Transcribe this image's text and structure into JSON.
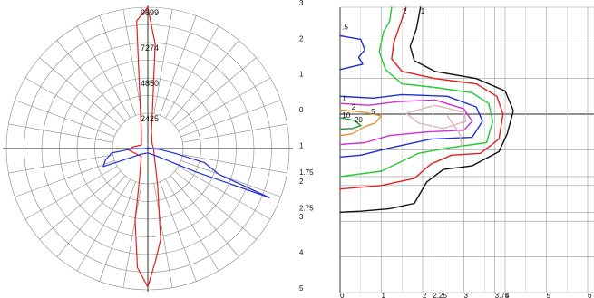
{
  "chart_data": [
    {
      "type": "polar-line",
      "title": "",
      "radial_tick_labels": [
        "2425",
        "4850",
        "7274",
        "9699"
      ],
      "radial_ticks": [
        2425,
        4850,
        7274,
        9699
      ],
      "rmax": 9699,
      "angle_step_deg": 10,
      "colors": {
        "grid": "#888888",
        "axis": "#222222"
      },
      "series": [
        {
          "color": "#e02020",
          "points": [
            {
              "angle": 0,
              "r": 9699
            },
            {
              "angle": 4,
              "r": 7200
            },
            {
              "angle": 7,
              "r": 2600
            },
            {
              "angle": 12,
              "r": 1200
            },
            {
              "angle": 40,
              "r": 450
            },
            {
              "angle": 90,
              "r": 400
            },
            {
              "angle": 140,
              "r": 700
            },
            {
              "angle": 165,
              "r": 2600
            },
            {
              "angle": 172,
              "r": 6300
            },
            {
              "angle": 176,
              "r": 7700
            },
            {
              "angle": 180,
              "r": 9500
            },
            {
              "angle": 185,
              "r": 8200
            },
            {
              "angle": 190,
              "r": 5000
            },
            {
              "angle": 195,
              "r": 2200
            },
            {
              "angle": 220,
              "r": 700
            },
            {
              "angle": 265,
              "r": 1300
            },
            {
              "angle": 275,
              "r": 1100
            },
            {
              "angle": 300,
              "r": 500
            },
            {
              "angle": 340,
              "r": 1300
            },
            {
              "angle": 355,
              "r": 8800
            },
            {
              "angle": 360,
              "r": 9699
            }
          ]
        },
        {
          "color": "#1f2fd0",
          "points": [
            {
              "angle": 0,
              "r": 50
            },
            {
              "angle": 80,
              "r": 150
            },
            {
              "angle": 95,
              "r": 900
            },
            {
              "angle": 100,
              "r": 1900
            },
            {
              "angle": 104,
              "r": 4000
            },
            {
              "angle": 110,
              "r": 5200
            },
            {
              "angle": 112,
              "r": 9000
            },
            {
              "angle": 116,
              "r": 3600
            },
            {
              "angle": 130,
              "r": 800
            },
            {
              "angle": 180,
              "r": 300
            },
            {
              "angle": 230,
              "r": 600
            },
            {
              "angle": 248,
              "r": 3300
            },
            {
              "angle": 255,
              "r": 3000
            },
            {
              "angle": 263,
              "r": 2500
            },
            {
              "angle": 268,
              "r": 1200
            },
            {
              "angle": 275,
              "r": 100
            },
            {
              "angle": 360,
              "r": 50
            }
          ]
        }
      ]
    },
    {
      "type": "contour",
      "title": "",
      "xlim": [
        0,
        6.5
      ],
      "ylim_top": 3,
      "ylim_bottom": 5,
      "y_tick_labels": [
        "3",
        "2",
        "1",
        "0",
        "1",
        "1.75",
        "2",
        "2.75",
        "3",
        "4",
        "5"
      ],
      "y_ticks": [
        3,
        2,
        1,
        0,
        -1,
        -1.75,
        -2,
        -2.75,
        -3,
        -4,
        -5
      ],
      "x_tick_labels": [
        "0",
        "1",
        "2",
        "2.25",
        "3",
        "3.75",
        "4",
        "5",
        "6"
      ],
      "x_ticks": [
        0,
        1,
        2,
        2.25,
        3,
        3.75,
        4,
        5,
        6
      ],
      "contour_labels": [
        {
          "text": "2",
          "x": 1.52,
          "y": 2.9
        },
        {
          "text": "1",
          "x": 1.95,
          "y": 2.9
        },
        {
          "text": ".5",
          "x": 0.05,
          "y": 2.45
        },
        {
          "text": "1",
          "x": 0.05,
          "y": 0.45
        },
        {
          "text": "2",
          "x": 0.28,
          "y": 0.2
        },
        {
          "text": "5",
          "x": 0.75,
          "y": 0.07
        },
        {
          "text": "10",
          "x": 0.05,
          "y": -0.03
        },
        {
          "text": "20",
          "x": 0.35,
          "y": -0.15
        }
      ],
      "colors": {
        "grid": "#999999",
        "axis": "#222222"
      },
      "contours": [
        {
          "color": "#111111",
          "points": [
            [
              1.95,
              3
            ],
            [
              1.85,
              2.4
            ],
            [
              1.7,
              1.9
            ],
            [
              1.8,
              1.5
            ],
            [
              2.3,
              1.2
            ],
            [
              3.3,
              1.0
            ],
            [
              4.0,
              0.65
            ],
            [
              4.2,
              0.1
            ],
            [
              4.05,
              -0.55
            ],
            [
              3.85,
              -1.05
            ],
            [
              3.2,
              -1.45
            ],
            [
              2.5,
              -1.55
            ],
            [
              2.1,
              -1.9
            ],
            [
              1.8,
              -2.5
            ],
            [
              1.2,
              -2.65
            ],
            [
              0.5,
              -2.72
            ],
            [
              0,
              -2.75
            ]
          ]
        },
        {
          "color": "#e02020",
          "points": [
            [
              1.6,
              3
            ],
            [
              1.45,
              2.5
            ],
            [
              1.3,
              2.0
            ],
            [
              1.25,
              1.55
            ],
            [
              1.5,
              1.2
            ],
            [
              2.3,
              1.0
            ],
            [
              3.3,
              0.85
            ],
            [
              3.8,
              0.5
            ],
            [
              3.95,
              0
            ],
            [
              3.85,
              -0.7
            ],
            [
              3.4,
              -1.1
            ],
            [
              2.7,
              -1.15
            ],
            [
              2.2,
              -1.4
            ],
            [
              1.8,
              -1.8
            ],
            [
              1.0,
              -2.0
            ],
            [
              0,
              -2.1
            ]
          ]
        },
        {
          "color": "#22cc33",
          "points": [
            [
              1.25,
              3
            ],
            [
              1.2,
              2.6
            ],
            [
              1.05,
              2.3
            ],
            [
              0.95,
              1.75
            ],
            [
              1.1,
              1.25
            ],
            [
              1.5,
              0.85
            ],
            [
              2.3,
              0.75
            ],
            [
              3.2,
              0.6
            ],
            [
              3.6,
              0.3
            ],
            [
              3.7,
              -0.2
            ],
            [
              3.55,
              -0.8
            ],
            [
              2.6,
              -0.95
            ],
            [
              1.9,
              -1.1
            ],
            [
              1.0,
              -1.6
            ],
            [
              0,
              -1.75
            ]
          ]
        },
        {
          "color": "#1f2fd0",
          "points": [
            [
              0,
              2.2
            ],
            [
              0.5,
              2.1
            ],
            [
              0.6,
              1.8
            ],
            [
              0.45,
              1.6
            ],
            [
              0.55,
              1.4
            ],
            [
              0,
              1.25
            ]
          ]
        },
        {
          "color": "#1f2fd0",
          "points": [
            [
              0,
              0.5
            ],
            [
              0.8,
              0.45
            ],
            [
              1.5,
              0.55
            ],
            [
              2.6,
              0.5
            ],
            [
              3.3,
              0.2
            ],
            [
              3.45,
              -0.2
            ],
            [
              3.2,
              -0.65
            ],
            [
              2.2,
              -0.7
            ],
            [
              1.2,
              -0.95
            ],
            [
              0.5,
              -1.15
            ],
            [
              0,
              -1.2
            ]
          ]
        },
        {
          "color": "#cc33cc",
          "points": [
            [
              0,
              0.3
            ],
            [
              0.7,
              0.25
            ],
            [
              1.4,
              0.35
            ],
            [
              2.3,
              0.4
            ],
            [
              3.0,
              0.15
            ],
            [
              3.2,
              -0.2
            ],
            [
              3.0,
              -0.45
            ],
            [
              2.1,
              -0.5
            ],
            [
              1.2,
              -0.6
            ],
            [
              0.6,
              -0.8
            ],
            [
              0,
              -0.85
            ]
          ]
        },
        {
          "color": "#dd9933",
          "points": [
            [
              0,
              0.12
            ],
            [
              0.6,
              0.05
            ],
            [
              1.0,
              -0.05
            ],
            [
              0.85,
              -0.25
            ],
            [
              0.6,
              -0.35
            ],
            [
              0.3,
              -0.55
            ],
            [
              0,
              -0.6
            ]
          ]
        },
        {
          "color": "#ddb8b8",
          "points": [
            [
              1.6,
              0.02
            ],
            [
              2.3,
              0.25
            ],
            [
              3.0,
              0.05
            ],
            [
              3.05,
              -0.2
            ],
            [
              2.5,
              -0.4
            ],
            [
              1.9,
              -0.25
            ],
            [
              1.6,
              0.02
            ]
          ]
        },
        {
          "color": "#ddb8b8",
          "points": [
            [
              2.6,
              -0.05
            ],
            [
              2.9,
              -0.55
            ],
            [
              2.95,
              -0.9
            ]
          ]
        },
        {
          "color": "#119933",
          "points": [
            [
              0,
              -0.1
            ],
            [
              0.35,
              -0.18
            ],
            [
              0.5,
              -0.32
            ],
            [
              0.3,
              -0.4
            ],
            [
              0,
              -0.42
            ]
          ]
        }
      ]
    }
  ]
}
